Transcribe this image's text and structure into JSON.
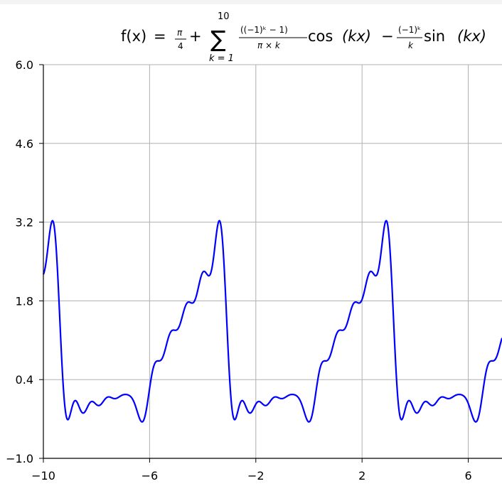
{
  "chart_data": {
    "type": "line",
    "title": {
      "f": "f(x)",
      "eq": "=",
      "pi": "π",
      "four": "4",
      "plus": "+",
      "sigma": "∑",
      "upper": "10",
      "lower": "k = 1",
      "num1": "((−1)ᵏ − 1)",
      "den1": "π × k",
      "cos": "cos",
      "kx1": "(kx)",
      "minus": "−",
      "num2": "(−1)ᵏ",
      "den2": "k",
      "sin": "sin",
      "kx2": "(kx)"
    },
    "xlabel": "",
    "ylabel": "",
    "xlim": [
      -10,
      7.27
    ],
    "ylim": [
      -1.0,
      6.0
    ],
    "xticks": [
      "−10",
      "−6",
      "−2",
      "2",
      "6"
    ],
    "xtick_values": [
      -10,
      -6,
      -2,
      2,
      6
    ],
    "yticks": [
      "6.0",
      "4.6",
      "3.2",
      "1.8",
      "0.4",
      "−1.0"
    ],
    "ytick_values": [
      6.0,
      4.6,
      3.2,
      1.8,
      0.4,
      -1.0
    ],
    "grid": true,
    "series": [
      {
        "color": "#0000ff",
        "function": "pi/4 + sum_{k=1}^{10} [((-1)^k - 1)/(pi*k)] cos(kx) - [(-1)^k/k] sin(kx)",
        "terms": 10,
        "x_start": -10,
        "x_end": 7.27,
        "samples": 1200
      }
    ]
  }
}
